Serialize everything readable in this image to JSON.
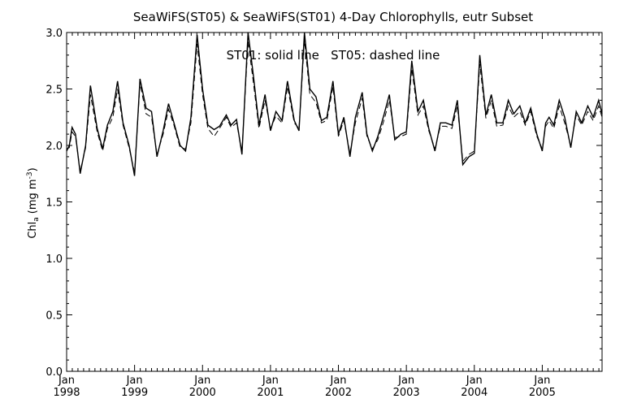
{
  "chart_data": {
    "type": "line",
    "title": "SeaWiFS(ST05) & SeaWiFS(ST01) 4-Day Chlorophylls, eutr Subset",
    "annotation": "ST01: solid line   ST05: dashed line",
    "xlabel": "",
    "ylabel_main": "Chl",
    "ylabel_sub": "a",
    "ylabel_unit": "(mg m",
    "ylabel_exp": "-3",
    "ylabel_close": ")",
    "xlim": [
      1998.0,
      2005.88
    ],
    "ylim": [
      0.0,
      3.0
    ],
    "y_ticks": [
      "0.0",
      "0.5",
      "1.0",
      "1.5",
      "2.0",
      "2.5",
      "3.0"
    ],
    "x_ticks": [
      {
        "x": 1998,
        "month": "Jan",
        "year": "1998"
      },
      {
        "x": 1999,
        "month": "Jan",
        "year": "1999"
      },
      {
        "x": 2000,
        "month": "Jan",
        "year": "2000"
      },
      {
        "x": 2001,
        "month": "Jan",
        "year": "2001"
      },
      {
        "x": 2002,
        "month": "Jan",
        "year": "2002"
      },
      {
        "x": 2003,
        "month": "Jan",
        "year": "2003"
      },
      {
        "x": 2004,
        "month": "Jan",
        "year": "2004"
      },
      {
        "x": 2005,
        "month": "Jan",
        "year": "2005"
      }
    ],
    "grid": false,
    "series": [
      {
        "name": "ST01",
        "style": "solid",
        "color": "#000000",
        "x": [
          1998.0,
          1998.04,
          1998.08,
          1998.13,
          1998.2,
          1998.28,
          1998.35,
          1998.45,
          1998.53,
          1998.6,
          1998.68,
          1998.75,
          1998.83,
          1998.92,
          1999.0,
          1999.08,
          1999.17,
          1999.25,
          1999.33,
          1999.42,
          1999.5,
          1999.58,
          1999.67,
          1999.75,
          1999.83,
          1999.92,
          2000.0,
          2000.08,
          2000.17,
          2000.25,
          2000.35,
          2000.42,
          2000.5,
          2000.58,
          2000.67,
          2000.75,
          2000.83,
          2000.92,
          2001.0,
          2001.08,
          2001.17,
          2001.25,
          2001.35,
          2001.42,
          2001.5,
          2001.58,
          2001.67,
          2001.75,
          2001.83,
          2001.92,
          2002.0,
          2002.08,
          2002.17,
          2002.25,
          2002.35,
          2002.42,
          2002.5,
          2002.58,
          2002.67,
          2002.75,
          2002.83,
          2002.92,
          2003.0,
          2003.08,
          2003.17,
          2003.25,
          2003.33,
          2003.42,
          2003.5,
          2003.58,
          2003.67,
          2003.75,
          2003.83,
          2003.92,
          2004.0,
          2004.08,
          2004.17,
          2004.25,
          2004.33,
          2004.42,
          2004.5,
          2004.58,
          2004.67,
          2004.75,
          2004.83,
          2004.92,
          2005.0,
          2005.05,
          2005.1,
          2005.17,
          2005.25,
          2005.33,
          2005.42,
          2005.5,
          2005.58,
          2005.67,
          2005.75,
          2005.83,
          2005.88
        ],
        "values": [
          1.95,
          2.0,
          2.16,
          2.1,
          1.75,
          2.0,
          2.53,
          2.15,
          1.97,
          2.18,
          2.3,
          2.57,
          2.2,
          2.0,
          1.73,
          2.59,
          2.33,
          2.3,
          1.9,
          2.13,
          2.37,
          2.2,
          2.0,
          1.95,
          2.25,
          2.98,
          2.5,
          2.18,
          2.14,
          2.17,
          2.27,
          2.18,
          2.23,
          1.92,
          3.0,
          2.61,
          2.18,
          2.45,
          2.13,
          2.3,
          2.22,
          2.57,
          2.22,
          2.13,
          3.0,
          2.5,
          2.43,
          2.22,
          2.25,
          2.57,
          2.1,
          2.25,
          1.9,
          2.25,
          2.47,
          2.1,
          1.95,
          2.08,
          2.27,
          2.45,
          2.05,
          2.1,
          2.12,
          2.75,
          2.3,
          2.4,
          2.15,
          1.95,
          2.2,
          2.2,
          2.18,
          2.4,
          1.83,
          1.9,
          1.93,
          2.8,
          2.27,
          2.45,
          2.2,
          2.2,
          2.4,
          2.28,
          2.35,
          2.2,
          2.33,
          2.1,
          1.95,
          2.2,
          2.25,
          2.18,
          2.4,
          2.25,
          1.98,
          2.3,
          2.2,
          2.35,
          2.25,
          2.4,
          2.28
        ]
      },
      {
        "name": "ST05",
        "style": "dashed",
        "color": "#000000",
        "x": [
          1998.0,
          1998.04,
          1998.08,
          1998.13,
          1998.2,
          1998.28,
          1998.35,
          1998.45,
          1998.53,
          1998.6,
          1998.68,
          1998.75,
          1998.83,
          1998.92,
          1999.0,
          1999.08,
          1999.17,
          1999.25,
          1999.33,
          1999.42,
          1999.5,
          1999.58,
          1999.67,
          1999.75,
          1999.83,
          1999.92,
          2000.0,
          2000.08,
          2000.17,
          2000.25,
          2000.35,
          2000.42,
          2000.5,
          2000.58,
          2000.67,
          2000.75,
          2000.83,
          2000.92,
          2001.0,
          2001.08,
          2001.17,
          2001.25,
          2001.35,
          2001.42,
          2001.5,
          2001.58,
          2001.67,
          2001.75,
          2001.83,
          2001.92,
          2002.0,
          2002.08,
          2002.17,
          2002.25,
          2002.35,
          2002.42,
          2002.5,
          2002.58,
          2002.67,
          2002.75,
          2002.83,
          2002.92,
          2003.0,
          2003.08,
          2003.17,
          2003.25,
          2003.33,
          2003.42,
          2003.5,
          2003.58,
          2003.67,
          2003.75,
          2003.83,
          2003.92,
          2004.0,
          2004.08,
          2004.17,
          2004.25,
          2004.33,
          2004.42,
          2004.5,
          2004.58,
          2004.67,
          2004.75,
          2004.83,
          2004.92,
          2005.0,
          2005.05,
          2005.1,
          2005.17,
          2005.25,
          2005.33,
          2005.42,
          2005.5,
          2005.58,
          2005.67,
          2005.75,
          2005.83,
          2005.88
        ],
        "values": [
          1.97,
          1.98,
          2.12,
          2.08,
          1.77,
          1.98,
          2.45,
          2.12,
          1.95,
          2.15,
          2.25,
          2.5,
          2.18,
          1.98,
          1.76,
          2.55,
          2.28,
          2.25,
          1.92,
          2.1,
          2.32,
          2.18,
          1.98,
          1.97,
          2.2,
          2.9,
          2.45,
          2.15,
          2.08,
          2.15,
          2.25,
          2.16,
          2.2,
          1.95,
          2.92,
          2.55,
          2.15,
          2.4,
          2.15,
          2.26,
          2.2,
          2.52,
          2.2,
          2.15,
          2.93,
          2.45,
          2.38,
          2.2,
          2.22,
          2.52,
          2.08,
          2.22,
          1.93,
          2.2,
          2.42,
          2.08,
          1.97,
          2.05,
          2.22,
          2.4,
          2.07,
          2.08,
          2.1,
          2.68,
          2.27,
          2.35,
          2.13,
          1.97,
          2.17,
          2.17,
          2.15,
          2.35,
          1.86,
          1.92,
          1.95,
          2.72,
          2.24,
          2.4,
          2.17,
          2.18,
          2.35,
          2.25,
          2.3,
          2.18,
          2.3,
          2.08,
          1.97,
          2.17,
          2.22,
          2.15,
          2.35,
          2.2,
          2.0,
          2.27,
          2.18,
          2.3,
          2.22,
          2.35,
          2.25
        ]
      }
    ]
  }
}
